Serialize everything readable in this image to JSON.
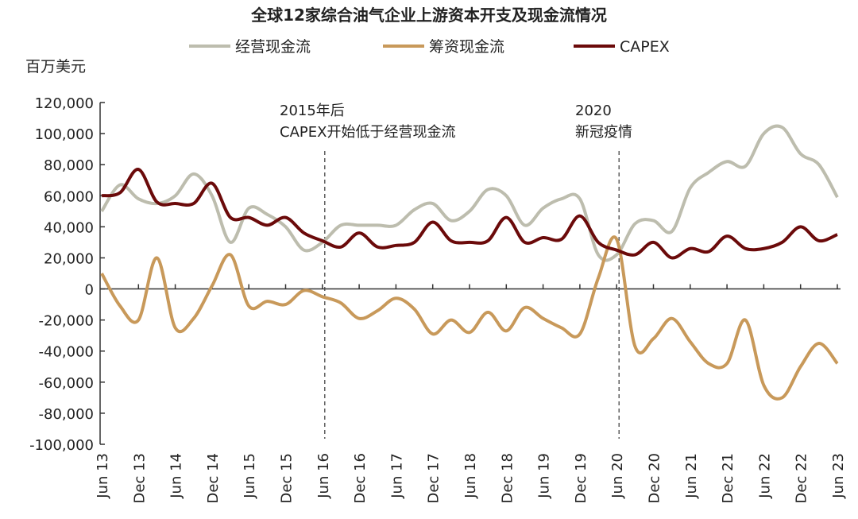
{
  "chart_data": {
    "type": "line",
    "title": "全球12家综合油气企业上游资本开支及现金流情况",
    "ylabel": "百万美元",
    "xlabel": "",
    "ylim": [
      -100000,
      120000
    ],
    "yticks": [
      120000,
      100000,
      80000,
      60000,
      40000,
      20000,
      0,
      -20000,
      -40000,
      -60000,
      -80000,
      -100000
    ],
    "ytick_labels": [
      "120,000",
      "100,000",
      "80,000",
      "60,000",
      "40,000",
      "20,000",
      "0",
      "-20,000",
      "-40,000",
      "-60,000",
      "-80,000",
      "-100,000"
    ],
    "x": [
      "Jun 13",
      "Sep 13",
      "Dec 13",
      "Mar 14",
      "Jun 14",
      "Sep 14",
      "Dec 14",
      "Mar 15",
      "Jun 15",
      "Sep 15",
      "Dec 15",
      "Mar 16",
      "Jun 16",
      "Sep 16",
      "Dec 16",
      "Mar 17",
      "Jun 17",
      "Sep 17",
      "Dec 17",
      "Mar 18",
      "Jun 18",
      "Sep 18",
      "Dec 18",
      "Mar 19",
      "Jun 19",
      "Sep 19",
      "Dec 19",
      "Mar 20",
      "Jun 20",
      "Sep 20",
      "Dec 20",
      "Mar 21",
      "Jun 21",
      "Sep 21",
      "Dec 21",
      "Mar 22",
      "Jun 22",
      "Sep 22",
      "Dec 22",
      "Mar 23",
      "Jun 23"
    ],
    "xtick_labels": [
      "Jun 13",
      "Dec 13",
      "Jun 14",
      "Dec 14",
      "Jun 15",
      "Dec 15",
      "Jun 16",
      "Dec 16",
      "Jun 17",
      "Dec 17",
      "Jun 18",
      "Dec 18",
      "Jun 19",
      "Dec 19",
      "Jun 20",
      "Dec 20",
      "Jun 21",
      "Dec 21",
      "Jun 22",
      "Dec 22",
      "Jun 23"
    ],
    "legend_position": "top",
    "grid": false,
    "series": [
      {
        "name": "经营现金流",
        "color": "#bdbdae",
        "values": [
          50000,
          67000,
          58000,
          55000,
          60000,
          74000,
          60000,
          30000,
          52000,
          48000,
          40000,
          25000,
          30000,
          41000,
          41000,
          41000,
          41000,
          51000,
          55000,
          44000,
          50000,
          64000,
          60000,
          41000,
          52000,
          58000,
          58000,
          22000,
          22000,
          42000,
          44000,
          37000,
          65000,
          75000,
          82000,
          79000,
          100000,
          104000,
          87000,
          80000,
          59000
        ]
      },
      {
        "name": "筹资现金流",
        "color": "#c8995a",
        "values": [
          10000,
          -11000,
          -20000,
          20000,
          -25000,
          -19000,
          2000,
          22000,
          -11000,
          -8000,
          -10000,
          -1000,
          -5000,
          -9000,
          -19000,
          -14000,
          -6000,
          -13000,
          -29000,
          -20000,
          -28000,
          -15000,
          -27000,
          -12000,
          -19000,
          -25000,
          -29000,
          7000,
          32000,
          -37000,
          -32000,
          -19000,
          -34000,
          -48000,
          -48000,
          -20000,
          -62000,
          -70000,
          -50000,
          -35000,
          -48000
        ]
      },
      {
        "name": "CAPEX",
        "color": "#6b0a0a",
        "values": [
          60000,
          62000,
          77000,
          56000,
          55000,
          55000,
          68000,
          46000,
          46000,
          41000,
          46000,
          36000,
          31000,
          27000,
          36000,
          27000,
          28000,
          30000,
          43000,
          31000,
          30000,
          31000,
          46000,
          30000,
          33000,
          32000,
          47000,
          30000,
          25000,
          22000,
          30000,
          20000,
          26000,
          24000,
          34000,
          26000,
          26000,
          30000,
          40000,
          31000,
          35000
        ]
      }
    ],
    "annotations": [
      {
        "x": "Jun 16",
        "lines": [
          "2015年后",
          "CAPEX开始低于经营现金流"
        ]
      },
      {
        "x": "Jun 20",
        "lines": [
          "2020",
          "新冠疫情"
        ]
      }
    ]
  }
}
